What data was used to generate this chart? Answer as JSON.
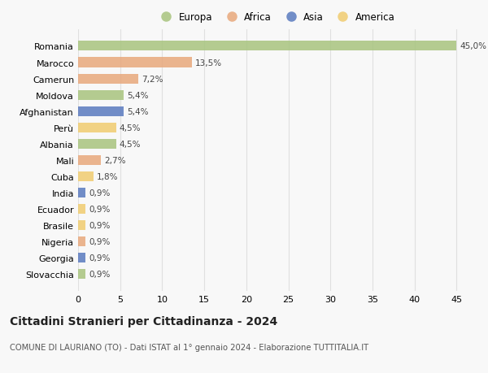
{
  "categories": [
    "Romania",
    "Marocco",
    "Camerun",
    "Moldova",
    "Afghanistan",
    "Perù",
    "Albania",
    "Mali",
    "Cuba",
    "India",
    "Ecuador",
    "Brasile",
    "Nigeria",
    "Georgia",
    "Slovacchia"
  ],
  "values": [
    45.0,
    13.5,
    7.2,
    5.4,
    5.4,
    4.5,
    4.5,
    2.7,
    1.8,
    0.9,
    0.9,
    0.9,
    0.9,
    0.9,
    0.9
  ],
  "labels": [
    "45,0%",
    "13,5%",
    "7,2%",
    "5,4%",
    "5,4%",
    "4,5%",
    "4,5%",
    "2,7%",
    "1,8%",
    "0,9%",
    "0,9%",
    "0,9%",
    "0,9%",
    "0,9%",
    "0,9%"
  ],
  "continents": [
    "Europa",
    "Africa",
    "Africa",
    "Europa",
    "Asia",
    "America",
    "Europa",
    "Africa",
    "America",
    "Asia",
    "America",
    "America",
    "Africa",
    "Asia",
    "Europa"
  ],
  "colors": {
    "Europa": "#a8c47e",
    "Africa": "#e8a87c",
    "Asia": "#5a7abf",
    "America": "#f0cc70"
  },
  "legend_order": [
    "Europa",
    "Africa",
    "Asia",
    "America"
  ],
  "title": "Cittadini Stranieri per Cittadinanza - 2024",
  "subtitle": "COMUNE DI LAURIANO (TO) - Dati ISTAT al 1° gennaio 2024 - Elaborazione TUTTITALIA.IT",
  "xlim": [
    0,
    47
  ],
  "xticks": [
    0,
    5,
    10,
    15,
    20,
    25,
    30,
    35,
    40,
    45
  ],
  "background_color": "#f8f8f8",
  "grid_color": "#e0e0e0",
  "bar_alpha": 0.85,
  "bar_height": 0.6
}
